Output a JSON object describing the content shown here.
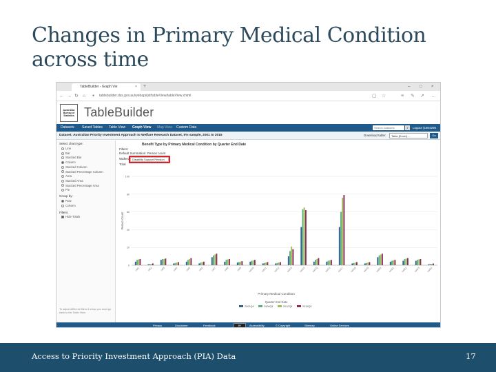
{
  "slide": {
    "title": "Changes in Primary Medical Condition across time",
    "footer_text": "Access to Priority Investment Approach (PIA) Data",
    "page_number": "17"
  },
  "browser": {
    "tab_title": "TableBuilder - Graph Vie",
    "tab_close": "×",
    "new_tab": "+",
    "url": "tablebuilder.dss.gov.au/webapi/jsf/tableView/tableView.xhtml",
    "window_controls": [
      "–",
      "□",
      "×"
    ]
  },
  "app": {
    "logo_text": "Australian Bureau of Statistics",
    "name": "TableBuilder",
    "nav": [
      "Datasets",
      "Saved Tables",
      "Table View",
      "Graph View",
      "Map View",
      "Custom Data"
    ],
    "active_nav": "Graph View",
    "search_placeholder": "Search Datasets",
    "logout": "Logout (1804295",
    "dataset": "Dataset: Australian Priority Investment Approach to Welfare Research Dataset, 5% sample, 2001 to 2015",
    "download_label": "Download table:",
    "download_option": "Table (Excel) ...",
    "go": "Go",
    "footer_links": [
      "Privacy",
      "Disclaimer",
      "Feedback",
      "Accessibility",
      "© Copyright",
      "Sitemap",
      "Online Services"
    ],
    "cc_badge": "BY"
  },
  "left_panel": {
    "chart_type_heading": "Select chart type:",
    "chart_types": [
      {
        "label": "Line",
        "selected": false
      },
      {
        "label": "Bar",
        "selected": false
      },
      {
        "label": "Stacked Bar",
        "selected": false
      },
      {
        "label": "Column",
        "selected": true
      },
      {
        "label": "Stacked Column",
        "selected": false
      },
      {
        "label": "Stacked Percentage Column",
        "selected": false
      },
      {
        "label": "Area",
        "selected": false
      },
      {
        "label": "Stacked Area",
        "selected": false
      },
      {
        "label": "Stacked Percentage Area",
        "selected": false
      },
      {
        "label": "Pie",
        "selected": false
      }
    ],
    "group_heading": "Group by:",
    "groups": [
      {
        "label": "Row",
        "selected": true
      },
      {
        "label": "Column",
        "selected": false
      }
    ],
    "filters_heading": "Filters:",
    "filter_option": "Hide Totals",
    "note": "To adjust different filters & show you must go back to the Table View."
  },
  "chart_meta": {
    "heading": "Benefit Type by Primary Medical Condition by Quarter End Date",
    "filters_label": "Filters:",
    "filter_line_1": "Default Summation: Person count",
    "wafer_label": "Wafers:",
    "wafer_value": "Disability Support Pension",
    "total_label": "Total"
  },
  "chart_data": {
    "type": "bar",
    "xlabel": "Primary Medical Condition",
    "ylabel": "Person Count",
    "ylim": [
      0,
      1000
    ],
    "yticks": [
      "100",
      "80",
      "60",
      "40",
      "20",
      "0"
    ],
    "legend_title": "Quarter End Date",
    "categories": [
      "cat1",
      "cat2",
      "cat3",
      "cat4",
      "cat5",
      "cat6",
      "cat7",
      "cat8",
      "cat9",
      "cat10",
      "cat11",
      "cat12",
      "cat13",
      "cat14",
      "cat15",
      "cat16",
      "cat17",
      "cat18",
      "cat19",
      "cat20",
      "cat21",
      "cat22",
      "cat23",
      "cat24"
    ],
    "series": [
      {
        "name": "2001Q4",
        "color": "#2f5f8f",
        "values": [
          40,
          10,
          60,
          20,
          40,
          20,
          90,
          40,
          30,
          40,
          20,
          20,
          100,
          430,
          40,
          40,
          430,
          20,
          20,
          90,
          40,
          50,
          50,
          10
        ]
      },
      {
        "name": "2006Q4",
        "color": "#5fae7f",
        "values": [
          60,
          15,
          70,
          25,
          60,
          30,
          110,
          60,
          35,
          50,
          25,
          25,
          160,
          630,
          60,
          50,
          600,
          25,
          25,
          110,
          50,
          70,
          60,
          15
        ]
      },
      {
        "name": "2010Q4",
        "color": "#9bbf5c",
        "values": [
          65,
          15,
          70,
          30,
          70,
          35,
          120,
          65,
          40,
          55,
          30,
          30,
          210,
          650,
          70,
          55,
          760,
          30,
          30,
          120,
          55,
          75,
          65,
          15
        ]
      },
      {
        "name": "2015Q4",
        "color": "#8a2a55",
        "values": [
          70,
          20,
          75,
          35,
          80,
          40,
          130,
          70,
          45,
          60,
          35,
          35,
          180,
          620,
          80,
          60,
          790,
          35,
          35,
          130,
          60,
          80,
          70,
          20
        ]
      }
    ]
  }
}
